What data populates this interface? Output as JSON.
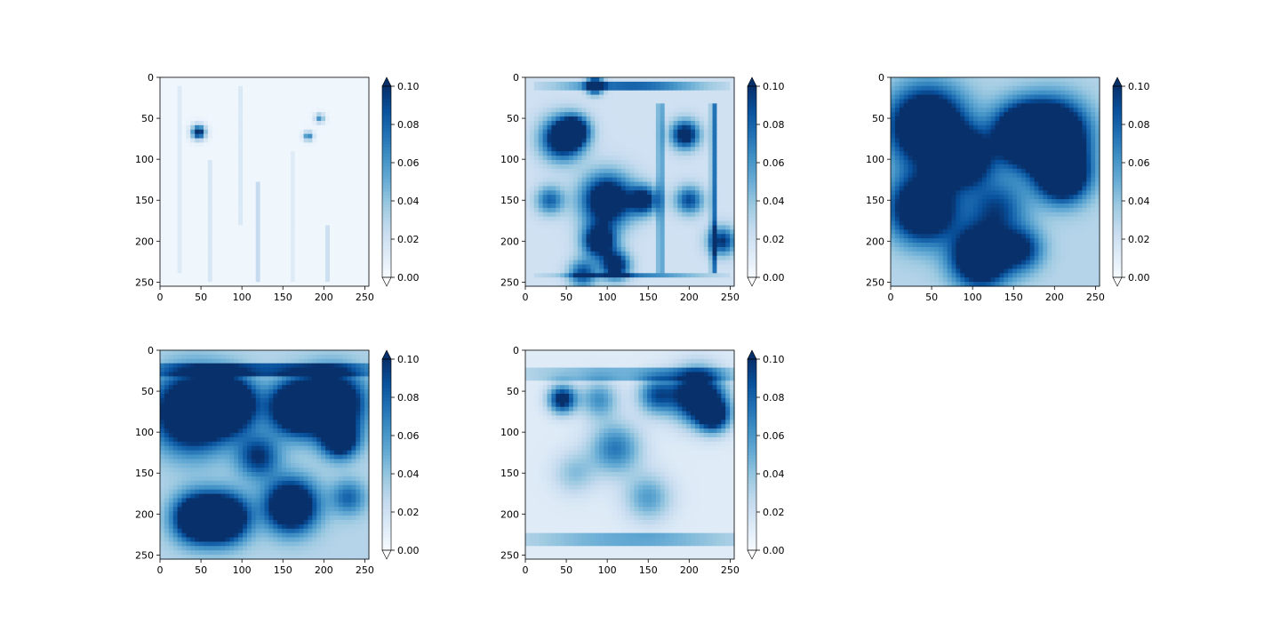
{
  "figure": {
    "background": "#ffffff"
  },
  "colormap": {
    "name": "Blues",
    "stops": [
      "#f7fbff",
      "#deebf7",
      "#c6dbef",
      "#9ecae1",
      "#6baed6",
      "#4292c6",
      "#2171b5",
      "#08519c",
      "#08306b"
    ],
    "over_color": "#08306b",
    "under_color": "#ffffff"
  },
  "chart_data": [
    {
      "type": "heatmap",
      "title": "",
      "xlim": [
        0,
        255
      ],
      "ylim": [
        255,
        0
      ],
      "xticks": [
        0,
        50,
        100,
        150,
        200,
        250
      ],
      "yticks": [
        0,
        50,
        100,
        150,
        200,
        250
      ],
      "colorbar": {
        "vmin": 0.0,
        "vmax": 0.1,
        "ticks": [
          "0.00",
          "0.02",
          "0.04",
          "0.06",
          "0.08",
          "0.10"
        ],
        "extend": "both"
      },
      "base": 0.004,
      "blobs": [
        {
          "x": 47,
          "y": 67,
          "r": 6,
          "v": 0.11
        },
        {
          "x": 195,
          "y": 50,
          "r": 4,
          "v": 0.06
        },
        {
          "x": 181,
          "y": 72,
          "r": 4,
          "v": 0.07
        }
      ],
      "streaks": [
        {
          "x": 25,
          "y0": 10,
          "y1": 240,
          "w": 3,
          "v": 0.012
        },
        {
          "x": 60,
          "y0": 100,
          "y1": 250,
          "w": 3,
          "v": 0.015
        },
        {
          "x": 100,
          "y0": 10,
          "y1": 180,
          "w": 3,
          "v": 0.02
        },
        {
          "x": 120,
          "y0": 130,
          "y1": 250,
          "w": 3,
          "v": 0.022
        },
        {
          "x": 160,
          "y0": 90,
          "y1": 250,
          "w": 3,
          "v": 0.02
        },
        {
          "x": 205,
          "y0": 180,
          "y1": 250,
          "w": 3,
          "v": 0.018
        }
      ]
    },
    {
      "type": "heatmap",
      "title": "",
      "xlim": [
        0,
        255
      ],
      "ylim": [
        255,
        0
      ],
      "xticks": [
        0,
        50,
        100,
        150,
        200,
        250
      ],
      "yticks": [
        0,
        50,
        100,
        150,
        200,
        250
      ],
      "colorbar": {
        "vmin": 0.0,
        "vmax": 0.1,
        "ticks": [
          "0.00",
          "0.02",
          "0.04",
          "0.06",
          "0.08",
          "0.10"
        ],
        "extend": "both"
      },
      "base": 0.02,
      "blobs": [
        {
          "x": 85,
          "y": 10,
          "r": 7,
          "v": 0.12
        },
        {
          "x": 45,
          "y": 75,
          "r": 18,
          "v": 0.11
        },
        {
          "x": 60,
          "y": 65,
          "r": 12,
          "v": 0.1
        },
        {
          "x": 100,
          "y": 150,
          "r": 22,
          "v": 0.12
        },
        {
          "x": 90,
          "y": 200,
          "r": 14,
          "v": 0.11
        },
        {
          "x": 110,
          "y": 230,
          "r": 12,
          "v": 0.1
        },
        {
          "x": 145,
          "y": 150,
          "r": 12,
          "v": 0.09
        },
        {
          "x": 195,
          "y": 70,
          "r": 12,
          "v": 0.1
        },
        {
          "x": 200,
          "y": 150,
          "r": 12,
          "v": 0.07
        },
        {
          "x": 240,
          "y": 200,
          "r": 12,
          "v": 0.08
        },
        {
          "x": 70,
          "y": 240,
          "r": 12,
          "v": 0.07
        },
        {
          "x": 30,
          "y": 150,
          "r": 12,
          "v": 0.06
        }
      ],
      "streaks": [
        {
          "x": 130,
          "y0": 5,
          "y1": 15,
          "w": 120,
          "v": 0.06
        },
        {
          "x": 130,
          "y0": 238,
          "y1": 246,
          "w": 120,
          "v": 0.05
        },
        {
          "x": 165,
          "y0": 30,
          "y1": 240,
          "w": 5,
          "v": 0.05
        },
        {
          "x": 230,
          "y0": 30,
          "y1": 240,
          "w": 5,
          "v": 0.06
        }
      ]
    },
    {
      "type": "heatmap",
      "title": "",
      "xlim": [
        0,
        255
      ],
      "ylim": [
        255,
        0
      ],
      "xticks": [
        0,
        50,
        100,
        150,
        200,
        250
      ],
      "yticks": [
        0,
        50,
        100,
        150,
        200,
        250
      ],
      "colorbar": {
        "vmin": 0.0,
        "vmax": 0.1,
        "ticks": [
          "0.00",
          "0.02",
          "0.04",
          "0.06",
          "0.08",
          "0.10"
        ],
        "extend": "both"
      },
      "base": 0.03,
      "blobs": [
        {
          "x": 45,
          "y": 60,
          "r": 32,
          "v": 0.14
        },
        {
          "x": 90,
          "y": 100,
          "r": 22,
          "v": 0.12
        },
        {
          "x": 40,
          "y": 160,
          "r": 28,
          "v": 0.13
        },
        {
          "x": 160,
          "y": 70,
          "r": 25,
          "v": 0.13
        },
        {
          "x": 200,
          "y": 70,
          "r": 28,
          "v": 0.14
        },
        {
          "x": 210,
          "y": 120,
          "r": 22,
          "v": 0.13
        },
        {
          "x": 110,
          "y": 220,
          "r": 24,
          "v": 0.14
        },
        {
          "x": 160,
          "y": 210,
          "r": 18,
          "v": 0.07
        },
        {
          "x": 130,
          "y": 160,
          "r": 25,
          "v": 0.06
        }
      ],
      "streaks": []
    },
    {
      "type": "heatmap",
      "title": "",
      "xlim": [
        0,
        255
      ],
      "ylim": [
        255,
        0
      ],
      "xticks": [
        0,
        50,
        100,
        150,
        200,
        250
      ],
      "yticks": [
        0,
        50,
        100,
        150,
        200,
        250
      ],
      "colorbar": {
        "vmin": 0.0,
        "vmax": 0.1,
        "ticks": [
          "0.00",
          "0.02",
          "0.04",
          "0.06",
          "0.08",
          "0.10"
        ],
        "extend": "both"
      },
      "base": 0.03,
      "blobs": [
        {
          "x": 40,
          "y": 75,
          "r": 32,
          "v": 0.14
        },
        {
          "x": 85,
          "y": 65,
          "r": 22,
          "v": 0.13
        },
        {
          "x": 165,
          "y": 70,
          "r": 22,
          "v": 0.13
        },
        {
          "x": 210,
          "y": 65,
          "r": 26,
          "v": 0.14
        },
        {
          "x": 220,
          "y": 110,
          "r": 15,
          "v": 0.1
        },
        {
          "x": 45,
          "y": 205,
          "r": 20,
          "v": 0.13
        },
        {
          "x": 80,
          "y": 205,
          "r": 20,
          "v": 0.13
        },
        {
          "x": 160,
          "y": 190,
          "r": 22,
          "v": 0.13
        },
        {
          "x": 120,
          "y": 130,
          "r": 18,
          "v": 0.07
        },
        {
          "x": 230,
          "y": 180,
          "r": 15,
          "v": 0.05
        }
      ],
      "streaks": [
        {
          "x": 130,
          "y0": 15,
          "y1": 30,
          "w": 230,
          "v": 0.05
        }
      ]
    },
    {
      "type": "heatmap",
      "title": "",
      "xlim": [
        0,
        255
      ],
      "ylim": [
        255,
        0
      ],
      "xticks": [
        0,
        50,
        100,
        150,
        200,
        250
      ],
      "yticks": [
        0,
        50,
        100,
        150,
        200,
        250
      ],
      "colorbar": {
        "vmin": 0.0,
        "vmax": 0.1,
        "ticks": [
          "0.00",
          "0.02",
          "0.04",
          "0.06",
          "0.08",
          "0.10"
        ],
        "extend": "both"
      },
      "base": 0.012,
      "blobs": [
        {
          "x": 45,
          "y": 60,
          "r": 12,
          "v": 0.1
        },
        {
          "x": 210,
          "y": 55,
          "r": 22,
          "v": 0.13
        },
        {
          "x": 230,
          "y": 80,
          "r": 14,
          "v": 0.1
        },
        {
          "x": 160,
          "y": 55,
          "r": 16,
          "v": 0.07
        },
        {
          "x": 110,
          "y": 120,
          "r": 22,
          "v": 0.06
        },
        {
          "x": 90,
          "y": 60,
          "r": 16,
          "v": 0.05
        },
        {
          "x": 150,
          "y": 180,
          "r": 20,
          "v": 0.045
        },
        {
          "x": 60,
          "y": 150,
          "r": 18,
          "v": 0.03
        }
      ],
      "streaks": [
        {
          "x": 130,
          "y0": 225,
          "y1": 240,
          "w": 220,
          "v": 0.04
        },
        {
          "x": 130,
          "y0": 20,
          "y1": 35,
          "w": 230,
          "v": 0.035
        }
      ]
    }
  ]
}
